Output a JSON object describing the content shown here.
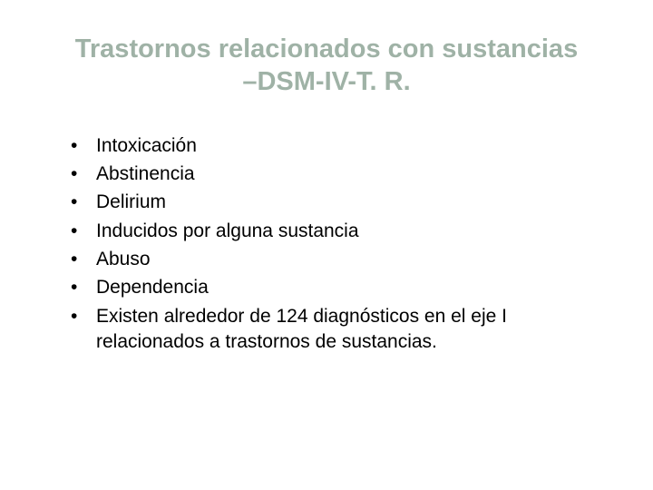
{
  "slide": {
    "title": "Trastornos relacionados con sustancias –DSM-IV-T. R.",
    "title_color": "#9fb2a6",
    "title_fontsize": 29,
    "title_fontweight": "bold",
    "background_color": "#ffffff",
    "bullet_color": "#000000",
    "bullet_fontsize": 21,
    "items": [
      "Intoxicación",
      "Abstinencia",
      "Delirium",
      "Inducidos por alguna sustancia",
      "Abuso",
      "Dependencia",
      "Existen alrededor de 124 diagnósticos en el eje I relacionados a trastornos de sustancias."
    ]
  }
}
